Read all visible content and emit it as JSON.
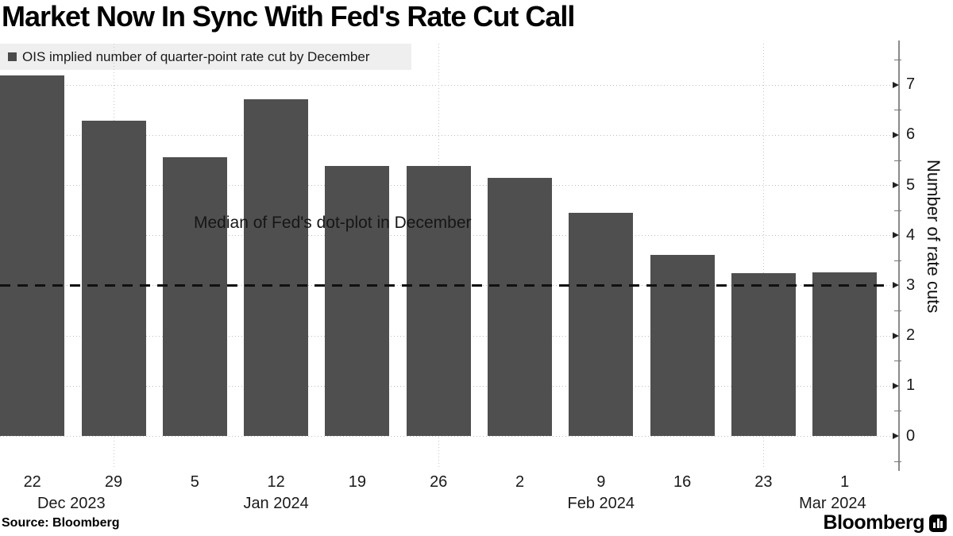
{
  "chart_data": {
    "type": "bar",
    "title": "Market Now In Sync With Fed's Rate Cut Call",
    "legend_label": "OIS implied number of quarter-point rate cut by December",
    "categories": [
      "22",
      "29",
      "5",
      "12",
      "19",
      "26",
      "2",
      "9",
      "16",
      "23",
      "1"
    ],
    "values": [
      7.19,
      6.3,
      5.57,
      6.72,
      5.39,
      5.39,
      5.16,
      4.46,
      3.61,
      3.26,
      3.27
    ],
    "month_labels": [
      {
        "text": "Dec 2023",
        "at_index": 0.48
      },
      {
        "text": "Jan 2024",
        "at_index": 3
      },
      {
        "text": "Feb 2024",
        "at_index": 7
      },
      {
        "text": "Mar 2024",
        "at_index": 9.85
      }
    ],
    "xlabel": "",
    "ylabel": "Number of rate cuts",
    "yticks": [
      0,
      1,
      2,
      3,
      4,
      5,
      6,
      7
    ],
    "ylim": [
      -0.69,
      7.89
    ],
    "legend_position": "top-left",
    "grid": "dotted-horizontal-and-month-verticals",
    "vline_category_indices": [
      1,
      5,
      9
    ],
    "reference_line": {
      "value": 3,
      "style": "dashed",
      "label": "Median of Fed's dot-plot in December"
    },
    "bar_color": "#4f4f4f",
    "legend_bg": "#efefef"
  },
  "footer": {
    "source": "Source: Bloomberg",
    "brand": "Bloomberg"
  }
}
